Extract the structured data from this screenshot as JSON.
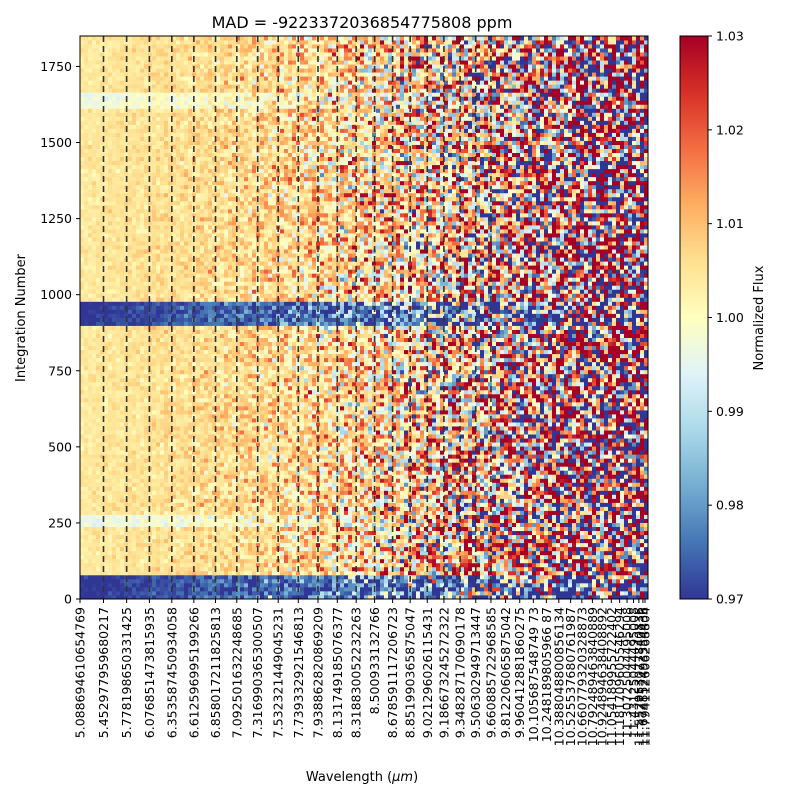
{
  "chart_data": {
    "type": "heatmap",
    "title": "MAD = -9223372036854775808 ppm",
    "xlabel": "Wavelength (",
    "xlabel_math": "μm",
    "xlabel_close": ")",
    "ylabel": "Integration Number",
    "ylim": [
      0,
      1850
    ],
    "yticks": [
      0,
      250,
      500,
      750,
      1000,
      1250,
      1500,
      1750
    ],
    "yticklabels": [
      "0",
      "250",
      "500",
      "750",
      "1000",
      "1250",
      "1500",
      "1750"
    ],
    "xticklabels": [
      "5.088694610654769",
      "5.452977959680217",
      "5.778198650331425",
      "6.076851473815935",
      "6.353587450934058",
      "6.612596995199266",
      "6.858017211825813",
      "7.092501632248685",
      "7.316990365300507",
      "7.532321449045231",
      "7.739332921546813",
      "7.938862820869209",
      "8.131749185076377",
      "8.318830052232263",
      "8.500933132766",
      "8.678591117206723",
      "8.851990365875047",
      "9.021296026115431",
      "9.186673245272322",
      "9.348287170690178",
      "9.506302949713447",
      "9.660885722968585",
      "9.812206065875042",
      "9.960412881860275",
      "10.105687548749 73",
      "10.248189805966 87",
      "10.388048800856134",
      "10.525537680761987",
      "10.660779320328873",
      "10.792489463840889",
      "10.924894638408892",
      "11.054189955722402",
      "11.181709605546294",
      "11.30725044495008",
      "11.43125044495008",
      "11.552953077840836",
      "11.674852493354436",
      "11.794112606268804"
    ],
    "dashed_lines_count": 21,
    "dark_band_rows": [
      [
        0,
        80
      ],
      [
        900,
        975
      ]
    ],
    "light_band_rows": [
      [
        235,
        275
      ],
      [
        1615,
        1665
      ]
    ],
    "colorbar": {
      "label": "Normalized Flux",
      "range": [
        0.97,
        1.03
      ],
      "ticks": [
        0.97,
        0.98,
        0.99,
        1.0,
        1.01,
        1.02,
        1.03
      ],
      "ticklabels": [
        "0.97",
        "0.98",
        "0.99",
        "1.00",
        "1.01",
        "1.02",
        "1.03"
      ],
      "colormap": "RdYlBu_r"
    }
  }
}
